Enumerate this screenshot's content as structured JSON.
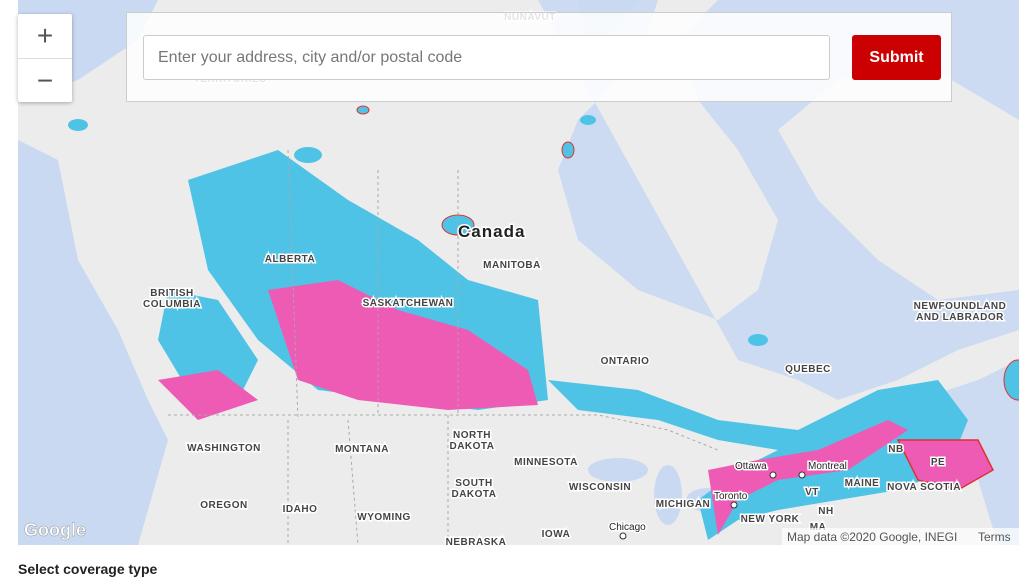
{
  "search": {
    "placeholder": "Enter your address, city and/or postal code",
    "submit": "Submit"
  },
  "zoom": {
    "in": "+",
    "out": "−"
  },
  "map": {
    "country_label": "Canada",
    "labels": [
      [
        "NUNAVUT"
      ],
      [
        "TERRITORIES"
      ],
      [
        "ALBERTA"
      ],
      [
        "MANITOBA"
      ],
      [
        "BRITISH",
        "COLUMBIA"
      ],
      [
        "SASKATCHEWAN"
      ],
      [
        "NEWFOUNDLAND",
        "AND LABRADOR"
      ],
      [
        "ONTARIO"
      ],
      [
        "QUEBEC"
      ],
      [
        "WASHINGTON"
      ],
      [
        "MONTANA"
      ],
      [
        "NORTH",
        "DAKOTA"
      ],
      [
        "MINNESOTA"
      ],
      [
        "NB"
      ],
      [
        "PE"
      ],
      [
        "MAINE"
      ],
      [
        "NOVA SCOTIA"
      ],
      [
        "VT"
      ],
      [
        "SOUTH",
        "DAKOTA"
      ],
      [
        "WISCONSIN"
      ],
      [
        "MICHIGAN"
      ],
      [
        "OREGON"
      ],
      [
        "IDAHO"
      ],
      [
        "WYOMING"
      ],
      [
        "NH"
      ],
      [
        "NEW YORK"
      ],
      [
        "MA"
      ],
      [
        "IOWA"
      ],
      [
        "NEBRASKA"
      ]
    ],
    "cities": [
      "Ottawa",
      "Montreal",
      "Toronto",
      "Chicago"
    ],
    "logo": "Google",
    "attribution": "Map data ©2020 Google, INEGI",
    "terms": "Terms"
  },
  "footer": {
    "title": "Select coverage type"
  }
}
